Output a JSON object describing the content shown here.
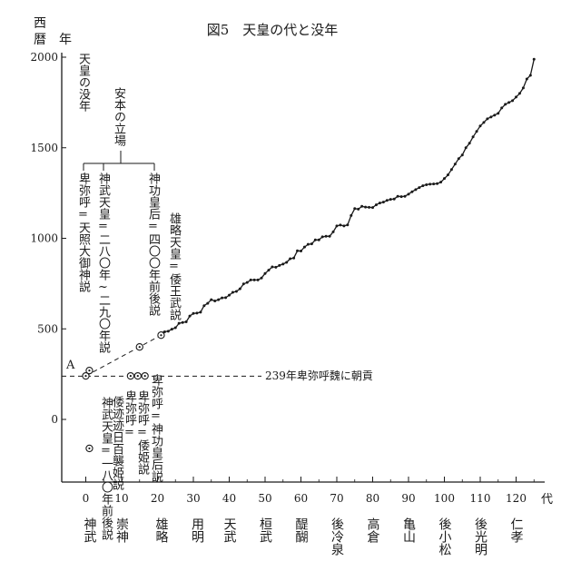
{
  "chart_data": {
    "type": "line",
    "title": "図5　天皇の代と没年",
    "ylabel_top": "西",
    "ylabel_bottom": "暦",
    "ylabel_unit": "年",
    "xlabel_unit": "代",
    "x_ticks": [
      "0",
      "10",
      "20",
      "30",
      "40",
      "50",
      "60",
      "70",
      "80",
      "90",
      "100",
      "110",
      "120"
    ],
    "y_ticks": [
      "0",
      "500",
      "1000",
      "1500",
      "2000"
    ],
    "xlim": [
      -10,
      126
    ],
    "ylim": [
      -400,
      2060
    ],
    "grid": false,
    "emperor_labels": [
      {
        "x": 1,
        "name": "神武"
      },
      {
        "x": 10,
        "name": "崇神"
      },
      {
        "x": 21,
        "name": "雄略"
      },
      {
        "x": 31,
        "name": "用明"
      },
      {
        "x": 40,
        "name": "天武"
      },
      {
        "x": 50,
        "name": "桓武"
      },
      {
        "x": 60,
        "name": "醍醐"
      },
      {
        "x": 70,
        "name": "後冷泉"
      },
      {
        "x": 80,
        "name": "高倉"
      },
      {
        "x": 90,
        "name": "亀山"
      },
      {
        "x": 100,
        "name": "後小松"
      },
      {
        "x": 110,
        "name": "後光明"
      },
      {
        "x": 120,
        "name": "仁孝"
      }
    ],
    "series": [
      {
        "x": [
          21,
          22,
          23,
          24,
          25,
          26,
          27,
          28,
          29,
          30,
          31,
          32,
          33,
          34,
          35,
          36,
          37,
          38,
          39,
          40,
          41,
          42,
          43,
          44,
          45,
          46,
          47,
          48,
          49,
          50,
          51,
          52,
          53,
          54,
          55,
          56,
          57,
          58,
          59,
          60,
          61,
          62,
          63,
          64,
          65,
          66,
          67,
          68,
          69,
          70,
          71,
          72,
          73,
          74,
          75,
          76,
          77,
          78,
          79,
          80,
          81,
          82,
          83,
          84,
          85,
          86,
          87,
          88,
          89,
          90,
          91,
          92,
          93,
          94,
          95,
          96,
          97,
          98,
          99,
          100,
          101,
          102,
          103,
          104,
          105,
          106,
          107,
          108,
          109,
          110,
          111,
          112,
          113,
          114,
          115,
          116,
          117,
          118,
          119,
          120,
          121,
          122,
          123,
          124,
          125
        ],
        "y": [
          479,
          484,
          487,
          498,
          506,
          531,
          535,
          539,
          571,
          585,
          587,
          592,
          628,
          641,
          661,
          654,
          661,
          671,
          672,
          686,
          702,
          707,
          721,
          748,
          756,
          770,
          770,
          770,
          781,
          806,
          824,
          842,
          840,
          850,
          858,
          867,
          887,
          891,
          931,
          930,
          952,
          967,
          969,
          991,
          991,
          1008,
          1011,
          1011,
          1036,
          1068,
          1073,
          1068,
          1074,
          1126,
          1164,
          1161,
          1177,
          1172,
          1171,
          1170,
          1185,
          1195,
          1200,
          1209,
          1215,
          1217,
          1232,
          1230,
          1232,
          1244,
          1257,
          1269,
          1280,
          1290,
          1296,
          1299,
          1300,
          1302,
          1310,
          1330,
          1350,
          1380,
          1410,
          1440,
          1460,
          1500,
          1525,
          1560,
          1590,
          1620,
          1640,
          1660,
          1670,
          1680,
          1690,
          1720,
          1740,
          1750,
          1760,
          1780,
          1800,
          1830,
          1880,
          1900,
          1989
        ]
      }
    ],
    "markers": [
      {
        "x": 0,
        "y": 240
      },
      {
        "x": 1,
        "y": 270
      },
      {
        "x": 1,
        "y": -160
      },
      {
        "x": 12.5,
        "y": 240
      },
      {
        "x": 14.5,
        "y": 240
      },
      {
        "x": 16.5,
        "y": 240
      },
      {
        "x": 15,
        "y": 400
      },
      {
        "x": 21,
        "y": 465
      }
    ],
    "dashed_segments": [
      [
        {
          "x": 0,
          "y": 240
        },
        {
          "x": 21,
          "y": 465
        }
      ]
    ],
    "annotations": {
      "point_a": "A",
      "horizontal_line_y": 239,
      "horizontal_line_label": "239年卑弥呼魏に朝貢",
      "death_year_label": "天皇の没年",
      "anyasu_label": "安本の立場",
      "left_branch_label": "卑弥呼=天照大御神説",
      "mid_branch_label": "神武天皇=二八〇年~二九〇年説",
      "right_branch_label": "神功皇后=四〇〇年前後説",
      "yuryaku_label": "雄略天皇=倭王武説",
      "jimmu_below_label": "神武天皇=一八〇年前後説",
      "below_label_1": "倭迹迹日百襲姫説",
      "below_label_2": "卑弥呼=",
      "below_label_3": "卑弥呼=倭姫説",
      "below_label_4": "卑弥呼=神功皇后説"
    }
  }
}
